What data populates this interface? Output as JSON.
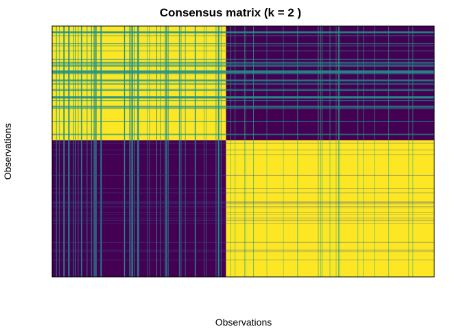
{
  "chart_data": {
    "type": "heatmap",
    "title": "Consensus matrix (k = 2 )",
    "xlabel": "Observations",
    "ylabel": "Observations",
    "k": 2,
    "clusters": [
      {
        "id": 1,
        "share": 0.455
      },
      {
        "id": 2,
        "share": 0.545
      }
    ],
    "consensus_within_cluster": 1.0,
    "consensus_between_clusters": 0.0,
    "value_range": [
      0,
      1
    ],
    "colors": {
      "low": "#440154",
      "mid": "#21908C",
      "high": "#FDE725",
      "streak_high": "#2AB07F",
      "streak_low": "#3B528B"
    },
    "x_ticks": "none",
    "y_ticks": "none",
    "legend": "none"
  }
}
